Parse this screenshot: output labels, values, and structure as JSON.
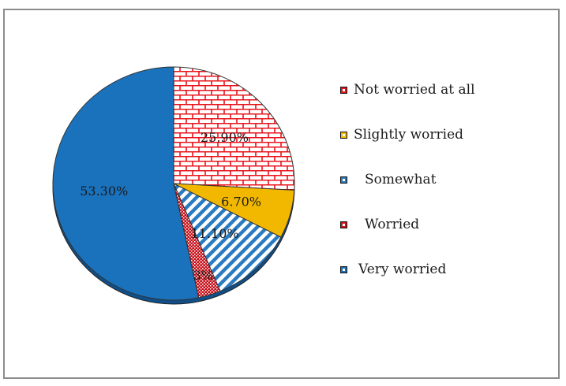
{
  "chart_data": {
    "type": "pie",
    "title": "",
    "slices": [
      {
        "label": "Not worried at all",
        "value": 25.9,
        "data_label": "25.90%",
        "color": "#e8141c",
        "pattern": "brick"
      },
      {
        "label": "Slightly worried",
        "value": 6.7,
        "data_label": "6.70%",
        "color": "#f2b800",
        "pattern": "solid"
      },
      {
        "label": "Somewhat",
        "value": 11.1,
        "data_label": "11.10%",
        "color": "#2a7bc1",
        "pattern": "diagonal-stripes"
      },
      {
        "label": "Worried",
        "value": 3.0,
        "data_label": "3%",
        "color": "#d0141c",
        "pattern": "dotted"
      },
      {
        "label": "Very worried",
        "value": 53.3,
        "data_label": "53.30%",
        "color": "#1a72bc",
        "pattern": "solid"
      }
    ],
    "legend_position": "right"
  }
}
